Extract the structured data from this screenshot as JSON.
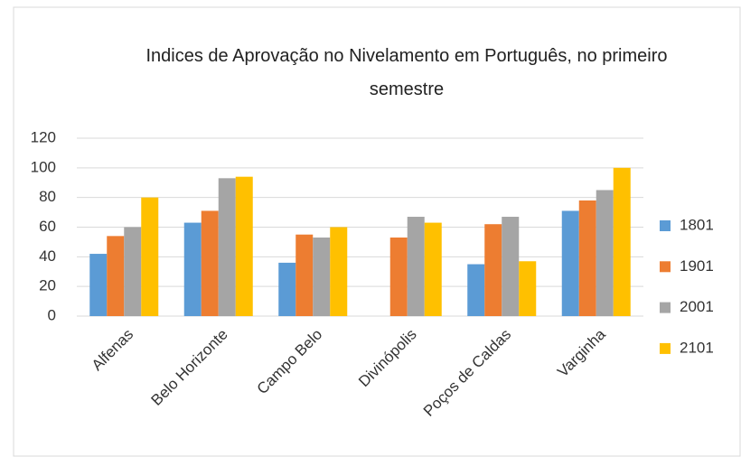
{
  "chart_data": {
    "type": "bar",
    "title": "Indices de Aprovação no Nivelamento em Português, no primeiro semestre",
    "categories": [
      "Alfenas",
      "Belo Horizonte",
      "Campo Belo",
      "Divinópolis",
      "Poços de Caldas",
      "Varginha"
    ],
    "series": [
      {
        "name": "1801",
        "color": "#5b9bd5",
        "values": [
          42,
          63,
          36,
          null,
          35,
          71
        ]
      },
      {
        "name": "1901",
        "color": "#ed7d31",
        "values": [
          54,
          71,
          55,
          53,
          62,
          78
        ]
      },
      {
        "name": "2001",
        "color": "#a5a5a5",
        "values": [
          60,
          93,
          53,
          67,
          67,
          85
        ]
      },
      {
        "name": "2101",
        "color": "#ffc000",
        "values": [
          80,
          94,
          60,
          63,
          37,
          100
        ]
      }
    ],
    "ylim": [
      0,
      120
    ],
    "yticks": [
      0,
      20,
      40,
      60,
      80,
      100,
      120
    ],
    "grid": true,
    "legend": "right"
  }
}
